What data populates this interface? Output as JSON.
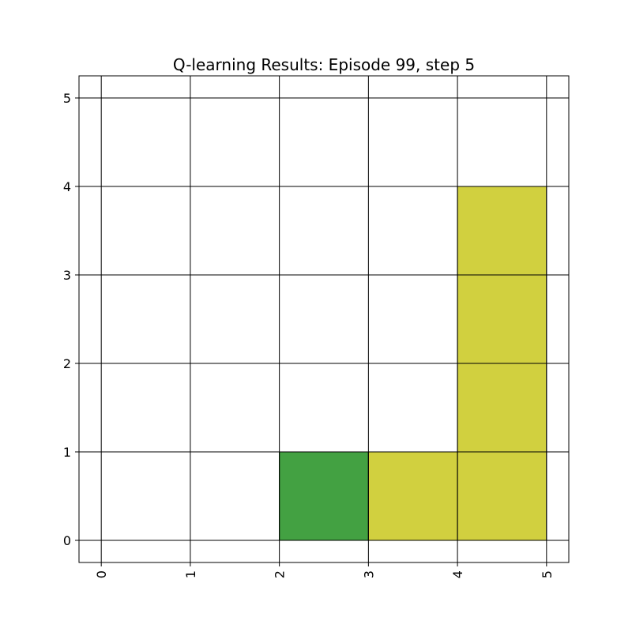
{
  "chart_data": {
    "type": "heatmap",
    "title": "Q-learning Results: Episode 99, step 5",
    "xlabel": "",
    "ylabel": "",
    "xlim": [
      -0.25,
      5.25
    ],
    "ylim": [
      -0.25,
      5.25
    ],
    "x_ticks": [
      0,
      1,
      2,
      3,
      4,
      5
    ],
    "y_ticks": [
      0,
      1,
      2,
      3,
      4,
      5
    ],
    "x_tick_labels": [
      "0",
      "1",
      "2",
      "3",
      "4",
      "5"
    ],
    "y_tick_labels": [
      "0",
      "1",
      "2",
      "3",
      "4",
      "5"
    ],
    "x_tick_rotation": "vertical",
    "grid": true,
    "legend": "none",
    "cells": [
      {
        "x": 2,
        "y": 0,
        "color": "#43a142"
      },
      {
        "x": 3,
        "y": 0,
        "color": "#d1d03f"
      },
      {
        "x": 4,
        "y": 0,
        "color": "#d1d03f"
      },
      {
        "x": 4,
        "y": 1,
        "color": "#d1d03f"
      },
      {
        "x": 4,
        "y": 2,
        "color": "#d1d03f"
      },
      {
        "x": 4,
        "y": 3,
        "color": "#d1d03f"
      }
    ]
  }
}
